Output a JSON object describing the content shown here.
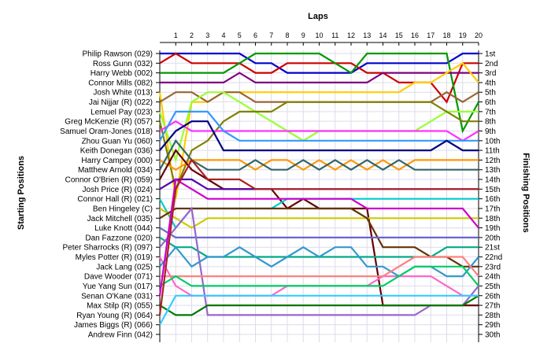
{
  "chart_data": {
    "type": "line",
    "title": "",
    "xlabel": "Laps",
    "ylabel_left": "Starting Positions",
    "ylabel_right": "Finishing Positions",
    "x": [
      0,
      1,
      2,
      3,
      4,
      5,
      6,
      7,
      8,
      9,
      10,
      11,
      12,
      13,
      14,
      15,
      16,
      17,
      18,
      19,
      20
    ],
    "x_tick_labels": [
      "1",
      "2",
      "3",
      "4",
      "5",
      "6",
      "7",
      "8",
      "9",
      "10",
      "11",
      "12",
      "13",
      "14",
      "15",
      "16",
      "17",
      "18",
      "19",
      "20"
    ],
    "ylim": [
      1,
      30
    ],
    "y_inverted": true,
    "grid": true,
    "starting_labels": [
      "Philip Rawson (029)",
      "Ross Gunn (032)",
      "Harry Webb (002)",
      "Connor Mills (082)",
      "Josh White (013)",
      "Jai Nijjar (R) (022)",
      "Lemuel Pay (023)",
      "Greg McKenzie (R) (057)",
      "Samuel Oram-Jones (018)",
      "Zhou Guan Yu (060)",
      "Keith Donegan (036)",
      "Harry Campey (000)",
      "Matthew Arnold (034)",
      "Connor O'Brien (R) (059)",
      "Josh Price (R) (024)",
      "Connor Hall (R) (021)",
      "Ben Hingeley (C)",
      "Jack Mitchell (035)",
      "Luke Knott (044)",
      "Dan Fazzone (020)",
      "Peter Sharrocks (R) (097)",
      "Myles Potter (R) (019)",
      "Jack Lang (025)",
      "Dave Wooder (071)",
      "Yue Yang Sun (017)",
      "Senan O'Kane (031)",
      "Max Stilp  (R) (055)",
      "Ryan Young (R) (064)",
      "James Biggs (R) (066)",
      "Andrew Finn (042)"
    ],
    "finishing_labels": [
      "1st",
      "2nd",
      "3rd",
      "4th",
      "5th",
      "6th",
      "7th",
      "8th",
      "9th",
      "10th",
      "11th",
      "12th",
      "13th",
      "14th",
      "15th",
      "16th",
      "17th",
      "18th",
      "19th",
      "20th",
      "21st",
      "22nd",
      "23rd",
      "24th",
      "25th",
      "26th",
      "27th",
      "28th",
      "29th",
      "30th"
    ],
    "series": [
      {
        "color": "#0000cc",
        "values": [
          1,
          1,
          1,
          1,
          1,
          1,
          2,
          2,
          3,
          3,
          3,
          3,
          3,
          2,
          2,
          2,
          2,
          2,
          2,
          1,
          1
        ]
      },
      {
        "color": "#cc0000",
        "values": [
          2,
          1,
          2,
          2,
          2,
          2,
          3,
          3,
          2,
          2,
          2,
          2,
          2,
          3,
          3,
          4,
          4,
          4,
          6,
          2,
          2
        ]
      },
      {
        "color": "#009900",
        "values": [
          3,
          3,
          3,
          3,
          3,
          2,
          1,
          1,
          1,
          1,
          1,
          2,
          3,
          1,
          1,
          1,
          1,
          1,
          1,
          9,
          6
        ]
      },
      {
        "color": "#7f007f",
        "values": [
          4,
          4,
          4,
          4,
          4,
          3,
          4,
          4,
          4,
          4,
          4,
          4,
          4,
          4,
          3,
          3,
          3,
          3,
          3,
          3,
          3
        ]
      },
      {
        "color": "#ffcc00",
        "values": [
          5,
          16,
          6,
          6,
          5,
          5,
          5,
          5,
          5,
          5,
          5,
          5,
          5,
          5,
          5,
          5,
          4,
          4,
          3,
          2,
          4
        ]
      },
      {
        "color": "#996633",
        "values": [
          6,
          5,
          5,
          6,
          5,
          5,
          6,
          6,
          6,
          6,
          6,
          6,
          6,
          6,
          6,
          6,
          6,
          6,
          5,
          6,
          5
        ]
      },
      {
        "color": "#99ff33",
        "values": [
          7,
          12,
          6,
          5,
          5,
          6,
          7,
          8,
          9,
          10,
          9,
          9,
          9,
          9,
          9,
          9,
          9,
          8,
          7,
          7,
          7
        ]
      },
      {
        "color": "#808000",
        "values": [
          8,
          15,
          11,
          10,
          8,
          7,
          7,
          7,
          6,
          6,
          6,
          6,
          6,
          6,
          6,
          6,
          6,
          6,
          7,
          8,
          8
        ]
      },
      {
        "color": "#ff33ff",
        "values": [
          9,
          8,
          9,
          9,
          9,
          9,
          9,
          9,
          9,
          9,
          9,
          9,
          9,
          9,
          9,
          9,
          9,
          9,
          9,
          10,
          9
        ]
      },
      {
        "color": "#3399ff",
        "values": [
          10,
          7,
          7,
          7,
          9,
          10,
          10,
          10,
          10,
          10,
          10,
          10,
          10,
          10,
          10,
          10,
          10,
          10,
          10,
          10,
          10
        ]
      },
      {
        "color": "#000080",
        "values": [
          11,
          9,
          8,
          8,
          11,
          11,
          11,
          11,
          11,
          11,
          11,
          11,
          11,
          11,
          11,
          11,
          11,
          11,
          10,
          11,
          11
        ]
      },
      {
        "color": "#ff9900",
        "values": [
          12,
          13,
          12,
          12,
          12,
          12,
          13,
          12,
          12,
          13,
          12,
          13,
          12,
          13,
          12,
          13,
          12,
          12,
          12,
          12,
          12
        ]
      },
      {
        "color": "#336666",
        "values": [
          13,
          10,
          12,
          13,
          13,
          13,
          12,
          13,
          13,
          12,
          13,
          12,
          13,
          12,
          13,
          12,
          13,
          13,
          13,
          13,
          13
        ]
      },
      {
        "color": "#660000",
        "values": [
          14,
          11,
          13,
          14,
          15,
          15,
          15,
          15,
          17,
          16,
          17,
          17,
          17,
          17,
          27,
          27,
          27,
          27,
          27,
          27,
          27
        ]
      },
      {
        "color": "#5500aa",
        "values": [
          15,
          14,
          14,
          15,
          15,
          15,
          15,
          15,
          15,
          15,
          15,
          15,
          15,
          15,
          15,
          15,
          15,
          15,
          15,
          15,
          15
        ]
      },
      {
        "color": "#00cccc",
        "values": [
          16,
          19,
          17,
          17,
          17,
          17,
          17,
          17,
          16,
          16,
          16,
          16,
          16,
          16,
          16,
          16,
          16,
          16,
          16,
          16,
          16
        ]
      },
      {
        "color": "#cccc00",
        "values": [
          17,
          18,
          19,
          18,
          18,
          18,
          18,
          18,
          18,
          18,
          18,
          18,
          18,
          18,
          18,
          18,
          18,
          18,
          18,
          18,
          18
        ]
      },
      {
        "color": "#663300",
        "values": [
          18,
          17,
          17,
          17,
          17,
          17,
          17,
          17,
          17,
          17,
          17,
          17,
          17,
          18,
          21,
          21,
          21,
          22,
          22,
          23,
          23
        ]
      },
      {
        "color": "#6666cc",
        "values": [
          19,
          20,
          20,
          20,
          20,
          20,
          20,
          20,
          20,
          20,
          20,
          20,
          20,
          20,
          20,
          20,
          20,
          20,
          20,
          20,
          20
        ]
      },
      {
        "color": "#00aa88",
        "values": [
          20,
          21,
          21,
          22,
          22,
          22,
          22,
          22,
          22,
          22,
          22,
          22,
          22,
          22,
          22,
          22,
          22,
          22,
          21,
          21,
          21
        ]
      },
      {
        "color": "#9966cc",
        "values": [
          21,
          19,
          17,
          28,
          28,
          28,
          28,
          28,
          28,
          28,
          28,
          28,
          28,
          28,
          28,
          28,
          28,
          27,
          27,
          27,
          25
        ]
      },
      {
        "color": "#ff66cc",
        "values": [
          22,
          25,
          26,
          26,
          26,
          26,
          26,
          26,
          25,
          25,
          25,
          25,
          25,
          25,
          24,
          24,
          24,
          24,
          25,
          26,
          26
        ]
      },
      {
        "color": "#3399cc",
        "values": [
          23,
          21,
          23,
          22,
          22,
          21,
          22,
          23,
          22,
          21,
          22,
          21,
          21,
          23,
          23,
          24,
          23,
          23,
          24,
          24,
          22
        ]
      },
      {
        "color": "#ff8080",
        "values": [
          24,
          24,
          24,
          24,
          24,
          24,
          24,
          24,
          24,
          24,
          24,
          24,
          24,
          24,
          24,
          23,
          22,
          22,
          22,
          22,
          24
        ]
      },
      {
        "color": "#00cc66",
        "values": [
          25,
          24,
          25,
          25,
          25,
          25,
          25,
          25,
          25,
          25,
          25,
          25,
          25,
          25,
          25,
          24,
          23,
          23,
          23,
          23,
          25
        ]
      },
      {
        "color": "#cc00cc",
        "values": [
          26,
          14,
          15,
          16,
          16,
          16,
          16,
          16,
          16,
          16,
          16,
          16,
          16,
          17,
          17,
          17,
          17,
          17,
          17,
          17,
          19
        ]
      },
      {
        "color": "#007700",
        "values": [
          27,
          28,
          28,
          27,
          27,
          27,
          27,
          27,
          27,
          27,
          27,
          27,
          27,
          27,
          27,
          27,
          27,
          27,
          27,
          27,
          26
        ]
      },
      {
        "color": "#aa2222",
        "values": [
          28,
          15,
          12,
          14,
          14,
          14,
          15,
          15,
          15,
          15,
          15,
          15,
          15,
          15,
          15,
          15,
          15,
          15,
          15,
          15,
          15
        ]
      },
      {
        "color": "#33ccff",
        "values": [
          29,
          26,
          26,
          26,
          26,
          26,
          26,
          26,
          26,
          26,
          26,
          26,
          26,
          26,
          26,
          26,
          26,
          26,
          26,
          26,
          26
        ]
      }
    ]
  }
}
